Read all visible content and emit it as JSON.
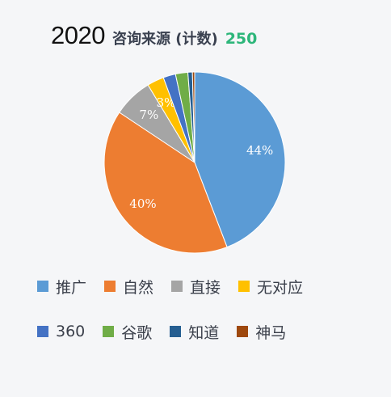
{
  "header": {
    "year": "2020",
    "label": "咨询来源 (计数)",
    "count": "250"
  },
  "chart_data": {
    "type": "pie",
    "title": "咨询来源 (计数)",
    "categories": [
      "推广",
      "自然",
      "直接",
      "无对应",
      "360",
      "谷歌",
      "知道",
      "神马"
    ],
    "values": [
      44,
      40,
      7,
      3,
      2.2,
      2.2,
      0.8,
      0.4
    ],
    "data_labels": [
      "44%",
      "40%",
      "7%",
      "3%",
      "",
      "",
      "",
      ""
    ],
    "colors": [
      "#5b9bd5",
      "#ed7d31",
      "#a5a5a5",
      "#ffc000",
      "#4472c4",
      "#70ad47",
      "#255e91",
      "#9e480e"
    ],
    "legend_position": "bottom"
  }
}
